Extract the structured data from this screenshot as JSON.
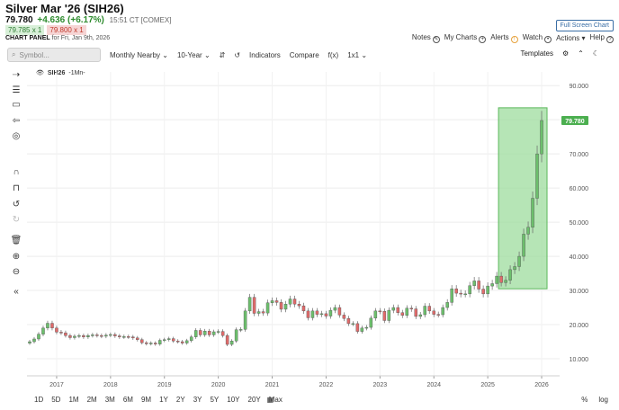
{
  "header": {
    "title": "Silver Mar '26 (SIH26)",
    "last": "79.780",
    "change": "+4.636 (+6.17%)",
    "time": "15:51 CT [COMEX]",
    "bid": "79.785 x 1",
    "ask": "79.800 x 1",
    "panel_label": "CHART PANEL",
    "panel_date": "for Fri, Jan 9th, 2026"
  },
  "top_right": {
    "fullscreen": "Full Screen Chart",
    "links": [
      "Notes",
      "My Charts",
      "Alerts",
      "Watch",
      "Actions",
      "Help"
    ]
  },
  "toolbar": {
    "symbol_placeholder": "Symbol...",
    "items": [
      "Monthly Nearby",
      "10-Year",
      "Indicators",
      "Compare",
      "f(x)",
      "1x1"
    ],
    "templates": "Templates"
  },
  "legend": {
    "symbol": "SIH26",
    "interval": "-1Mn-"
  },
  "left_tools": [
    "crosshair-icon",
    "list-icon",
    "rectangle-icon",
    "arrow-icon",
    "shape-icon",
    "magnet-icon",
    "lock-icon",
    "undo-icon",
    "redo-icon",
    "trash-icon",
    "zoom-in-icon",
    "zoom-out-icon",
    "collapse-icon"
  ],
  "range_buttons": [
    "1D",
    "5D",
    "1M",
    "2M",
    "3M",
    "6M",
    "9M",
    "1Y",
    "2Y",
    "3Y",
    "5Y",
    "10Y",
    "20Y",
    "Max"
  ],
  "bottom_right": [
    "%",
    "log"
  ],
  "colors": {
    "up": "#6cbf6c",
    "down": "#e06a6a",
    "highlight": "#9ddc9d",
    "price_tag": "#4caf50"
  },
  "chart_data": {
    "type": "candlestick",
    "x_labels": [
      "2017",
      "2018",
      "2019",
      "2020",
      "2021",
      "2022",
      "2023",
      "2024",
      "2025",
      "2026"
    ],
    "y_labels": [
      "10.000",
      "20.000",
      "30.000",
      "40.000",
      "50.000",
      "60.000",
      "70.000",
      "80.000",
      "90.000"
    ],
    "ylim": [
      5,
      94
    ],
    "last_price_label": "79.780",
    "highlight": {
      "from": "2025-04",
      "to": "2026-01",
      "low": 30.5,
      "high": 83.5
    },
    "monthly_close": [
      [
        "2016-07",
        15.0
      ],
      [
        "2016-08",
        15.8
      ],
      [
        "2016-09",
        17.2
      ],
      [
        "2016-10",
        19.0
      ],
      [
        "2016-11",
        20.4
      ],
      [
        "2016-12",
        19.0
      ],
      [
        "2017-01",
        17.8
      ],
      [
        "2017-02",
        17.6
      ],
      [
        "2017-03",
        16.8
      ],
      [
        "2017-04",
        16.2
      ],
      [
        "2017-05",
        16.6
      ],
      [
        "2017-06",
        16.8
      ],
      [
        "2017-07",
        16.4
      ],
      [
        "2017-08",
        16.8
      ],
      [
        "2017-09",
        17.0
      ],
      [
        "2017-10",
        16.8
      ],
      [
        "2017-11",
        16.6
      ],
      [
        "2017-12",
        16.9
      ],
      [
        "2018-01",
        17.1
      ],
      [
        "2018-02",
        16.7
      ],
      [
        "2018-03",
        16.4
      ],
      [
        "2018-04",
        16.5
      ],
      [
        "2018-05",
        16.4
      ],
      [
        "2018-06",
        16.1
      ],
      [
        "2018-07",
        15.6
      ],
      [
        "2018-08",
        14.7
      ],
      [
        "2018-09",
        14.4
      ],
      [
        "2018-10",
        14.6
      ],
      [
        "2018-11",
        14.3
      ],
      [
        "2018-12",
        15.4
      ],
      [
        "2019-01",
        15.6
      ],
      [
        "2019-02",
        15.9
      ],
      [
        "2019-03",
        15.2
      ],
      [
        "2019-04",
        15.0
      ],
      [
        "2019-05",
        14.6
      ],
      [
        "2019-06",
        15.3
      ],
      [
        "2019-07",
        16.4
      ],
      [
        "2019-08",
        18.3
      ],
      [
        "2019-09",
        17.0
      ],
      [
        "2019-10",
        18.1
      ],
      [
        "2019-11",
        17.0
      ],
      [
        "2019-12",
        17.9
      ],
      [
        "2020-01",
        18.0
      ],
      [
        "2020-02",
        16.8
      ],
      [
        "2020-03",
        14.2
      ],
      [
        "2020-04",
        15.2
      ],
      [
        "2020-05",
        18.5
      ],
      [
        "2020-06",
        18.6
      ],
      [
        "2020-07",
        24.0
      ],
      [
        "2020-08",
        28.0
      ],
      [
        "2020-09",
        23.3
      ],
      [
        "2020-10",
        23.8
      ],
      [
        "2020-11",
        23.4
      ],
      [
        "2020-12",
        26.4
      ],
      [
        "2021-01",
        27.0
      ],
      [
        "2021-02",
        26.5
      ],
      [
        "2021-03",
        24.5
      ],
      [
        "2021-04",
        26.0
      ],
      [
        "2021-05",
        27.5
      ],
      [
        "2021-06",
        26.0
      ],
      [
        "2021-07",
        25.5
      ],
      [
        "2021-08",
        24.0
      ],
      [
        "2021-09",
        22.0
      ],
      [
        "2021-10",
        24.0
      ],
      [
        "2021-11",
        23.0
      ],
      [
        "2021-12",
        23.2
      ],
      [
        "2022-01",
        22.5
      ],
      [
        "2022-02",
        24.2
      ],
      [
        "2022-03",
        25.0
      ],
      [
        "2022-04",
        22.8
      ],
      [
        "2022-05",
        21.8
      ],
      [
        "2022-06",
        20.3
      ],
      [
        "2022-07",
        20.3
      ],
      [
        "2022-08",
        18.0
      ],
      [
        "2022-09",
        19.0
      ],
      [
        "2022-10",
        19.2
      ],
      [
        "2022-11",
        21.9
      ],
      [
        "2022-12",
        24.0
      ],
      [
        "2023-01",
        23.9
      ],
      [
        "2023-02",
        21.2
      ],
      [
        "2023-03",
        24.2
      ],
      [
        "2023-04",
        25.0
      ],
      [
        "2023-05",
        23.5
      ],
      [
        "2023-06",
        22.7
      ],
      [
        "2023-07",
        24.8
      ],
      [
        "2023-08",
        24.6
      ],
      [
        "2023-09",
        22.4
      ],
      [
        "2023-10",
        22.9
      ],
      [
        "2023-11",
        25.4
      ],
      [
        "2023-12",
        24.0
      ],
      [
        "2024-01",
        23.0
      ],
      [
        "2024-02",
        22.9
      ],
      [
        "2024-03",
        25.0
      ],
      [
        "2024-04",
        26.5
      ],
      [
        "2024-05",
        30.5
      ],
      [
        "2024-06",
        29.2
      ],
      [
        "2024-07",
        29.0
      ],
      [
        "2024-08",
        29.0
      ],
      [
        "2024-09",
        31.4
      ],
      [
        "2024-10",
        32.8
      ],
      [
        "2024-11",
        30.4
      ],
      [
        "2024-12",
        29.0
      ],
      [
        "2025-01",
        31.3
      ],
      [
        "2025-02",
        32.0
      ],
      [
        "2025-03",
        34.2
      ],
      [
        "2025-04",
        32.3
      ],
      [
        "2025-05",
        33.0
      ],
      [
        "2025-06",
        36.1
      ],
      [
        "2025-07",
        37.0
      ],
      [
        "2025-08",
        40.0
      ],
      [
        "2025-09",
        46.5
      ],
      [
        "2025-10",
        48.5
      ],
      [
        "2025-11",
        57.0
      ],
      [
        "2025-12",
        70.0
      ],
      [
        "2026-01",
        79.78
      ]
    ]
  }
}
